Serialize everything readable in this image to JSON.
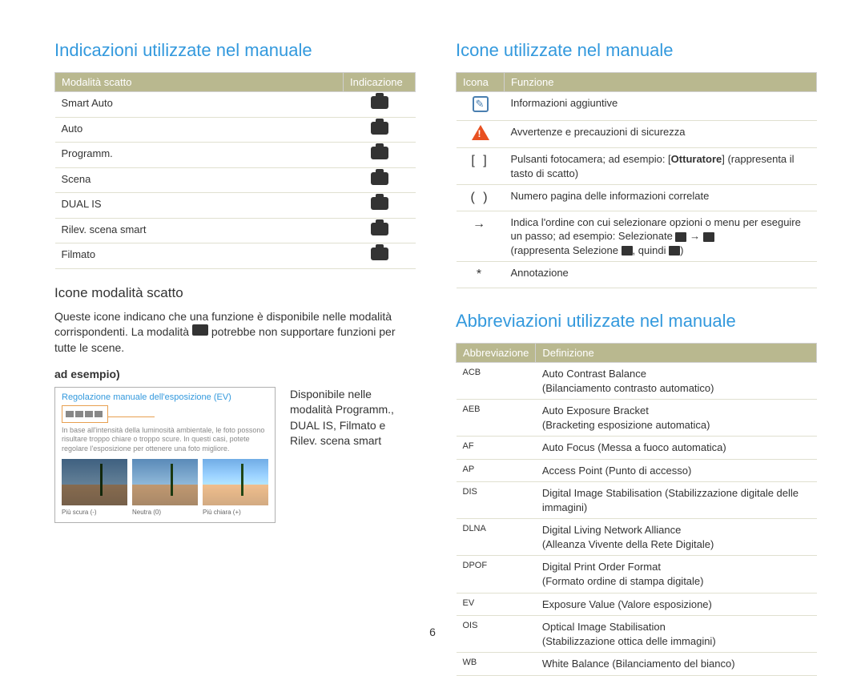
{
  "left": {
    "title": "Indicazioni utilizzate nel manuale",
    "table1": {
      "headers": [
        "Modalità scatto",
        "Indicazione"
      ],
      "rows": [
        {
          "mode": "Smart Auto"
        },
        {
          "mode": "Auto"
        },
        {
          "mode": "Programm."
        },
        {
          "mode": "Scena"
        },
        {
          "mode": "DUAL IS"
        },
        {
          "mode": "Rilev. scena smart"
        },
        {
          "mode": "Filmato"
        }
      ]
    },
    "subheading": "Icone modalità scatto",
    "paragraph_pre": "Queste icone indicano che una funzione è disponibile nelle modalità corrispondenti. La modalità ",
    "paragraph_post": " potrebbe non supportare funzioni per tutte le scene.",
    "example_label": "ad esempio)",
    "example_box": {
      "title": "Regolazione manuale dell'esposizione (EV)",
      "desc": "In base all'intensità della luminosità ambientale, le foto possono risultare troppo chiare o troppo scure. In questi casi, potete regolare l'esposizione per ottenere una foto migliore.",
      "labels": [
        "Più scura (-)",
        "Neutra (0)",
        "Più chiara (+)"
      ]
    },
    "caption": "Disponibile nelle modalità Programm., DUAL IS, Filmato e Rilev. scena smart"
  },
  "right": {
    "title1": "Icone utilizzate nel manuale",
    "table2": {
      "headers": [
        "Icona",
        "Funzione"
      ],
      "rows": [
        {
          "icon": "info",
          "func": "Informazioni aggiuntive"
        },
        {
          "icon": "warn",
          "func": "Avvertenze e precauzioni di sicurezza"
        },
        {
          "icon": "[  ]",
          "func_pre": "Pulsanti fotocamera; ad esempio: [",
          "func_bold": "Otturatore",
          "func_post": "] (rappresenta il tasto di scatto)"
        },
        {
          "icon": "(  )",
          "func": "Numero pagina delle informazioni correlate"
        },
        {
          "icon": "→",
          "func": "Indica l'ordine con cui selezionare opzioni o menu per eseguire un passo; ad esempio: Selezionate ",
          "has_seq": true,
          "func2": "(rappresenta Selezione ",
          "func3": ", quindi ",
          "func4": ")"
        },
        {
          "icon": "*",
          "func": "Annotazione"
        }
      ]
    },
    "title2": "Abbreviazioni utilizzate nel manuale",
    "table3": {
      "headers": [
        "Abbreviazione",
        "Definizione"
      ],
      "rows": [
        {
          "abbr": "ACB",
          "def": "Auto Contrast Balance\n(Bilanciamento contrasto automatico)"
        },
        {
          "abbr": "AEB",
          "def": "Auto Exposure Bracket\n(Bracketing esposizione automatica)"
        },
        {
          "abbr": "AF",
          "def": "Auto Focus (Messa a fuoco automatica)"
        },
        {
          "abbr": "AP",
          "def": "Access Point (Punto di accesso)"
        },
        {
          "abbr": "DIS",
          "def": "Digital Image Stabilisation (Stabilizzazione digitale delle immagini)"
        },
        {
          "abbr": "DLNA",
          "def": "Digital Living Network Alliance\n(Alleanza Vivente della Rete Digitale)"
        },
        {
          "abbr": "DPOF",
          "def": "Digital Print Order Format\n(Formato ordine di stampa digitale)"
        },
        {
          "abbr": "EV",
          "def": "Exposure Value (Valore esposizione)"
        },
        {
          "abbr": "OIS",
          "def": "Optical Image Stabilisation\n(Stabilizzazione ottica delle immagini)"
        },
        {
          "abbr": "WB",
          "def": "White Balance (Bilanciamento del bianco)"
        }
      ]
    }
  },
  "page_number": "6"
}
